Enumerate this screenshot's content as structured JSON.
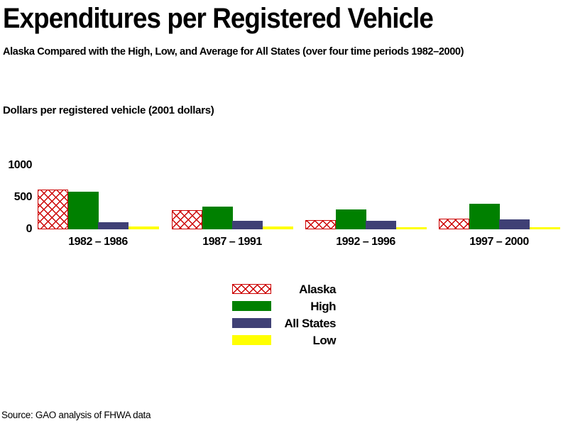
{
  "title": "Expenditures per Registered Vehicle",
  "subtitle": "Alaska Compared with the High, Low, and Average for All States (over four time periods 1982–2000)",
  "y_axis_unit": "Dollars per registered vehicle   (2001 dollars)",
  "source": "Source: GAO analysis of FHWA data",
  "colors": {
    "alaska": "#CC0000",
    "high": "#008000",
    "all_states": "#3F4075",
    "low": "#FFFF00"
  },
  "chart_data": {
    "type": "bar",
    "title": "Expenditures per Registered Vehicle",
    "subtitle": "Alaska Compared with the High, Low, and Average for All States (over four time periods 1982–2000)",
    "ylabel": "Dollars per registered vehicle (2001 dollars)",
    "xlabel": "",
    "categories": [
      "1982 – 1986",
      "1987 – 1991",
      "1992 – 1996",
      "1997 – 2000"
    ],
    "series": [
      {
        "name": "Alaska",
        "pattern": "red-crosshatch",
        "values": [
          620,
          300,
          140,
          170
        ]
      },
      {
        "name": "High",
        "pattern": "solid-green",
        "values": [
          590,
          355,
          310,
          400
        ]
      },
      {
        "name": "All States",
        "pattern": "solid-navy",
        "values": [
          110,
          130,
          130,
          160
        ]
      },
      {
        "name": "Low",
        "pattern": "solid-yellow",
        "values": [
          45,
          40,
          30,
          35
        ]
      }
    ],
    "yticks": [
      0,
      500,
      1000
    ],
    "ylim": [
      0,
      1000
    ],
    "grid": false,
    "legend": [
      "Alaska",
      "High",
      "All States",
      "Low"
    ],
    "legend_position": "bottom-center"
  }
}
